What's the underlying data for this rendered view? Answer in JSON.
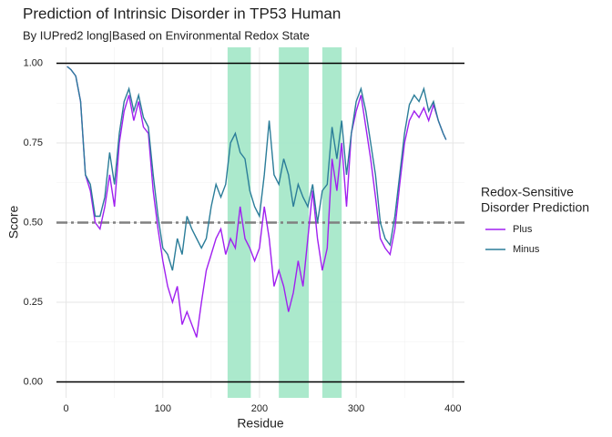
{
  "chart_data": {
    "type": "line",
    "title": "Prediction of Intrinsic Disorder in TP53 Human",
    "subtitle": "By IUPred2 long|Based on Environmental Redox State",
    "x_label": "Residue",
    "y_label": "Score",
    "legend_title": [
      "Redox-Sensitive",
      "Disorder Prediction"
    ],
    "legend_position": "right",
    "x": [
      1,
      5,
      10,
      15,
      20,
      25,
      30,
      35,
      40,
      45,
      50,
      55,
      60,
      65,
      70,
      75,
      80,
      85,
      90,
      95,
      100,
      105,
      110,
      115,
      120,
      125,
      130,
      135,
      140,
      145,
      150,
      155,
      160,
      165,
      170,
      175,
      180,
      185,
      190,
      195,
      200,
      205,
      210,
      215,
      220,
      225,
      230,
      235,
      240,
      245,
      250,
      255,
      260,
      265,
      270,
      275,
      280,
      285,
      290,
      295,
      300,
      305,
      310,
      315,
      320,
      325,
      330,
      335,
      340,
      345,
      350,
      355,
      360,
      365,
      370,
      375,
      380,
      385,
      390,
      393
    ],
    "series": [
      {
        "name": "Plus",
        "color": "#a020f0",
        "values": [
          0.99,
          0.98,
          0.96,
          0.88,
          0.65,
          0.6,
          0.5,
          0.48,
          0.55,
          0.65,
          0.55,
          0.75,
          0.85,
          0.9,
          0.82,
          0.88,
          0.8,
          0.78,
          0.6,
          0.48,
          0.38,
          0.3,
          0.25,
          0.3,
          0.18,
          0.22,
          0.18,
          0.14,
          0.25,
          0.35,
          0.4,
          0.45,
          0.48,
          0.4,
          0.45,
          0.42,
          0.55,
          0.45,
          0.42,
          0.38,
          0.42,
          0.55,
          0.45,
          0.3,
          0.35,
          0.3,
          0.22,
          0.28,
          0.38,
          0.3,
          0.45,
          0.6,
          0.45,
          0.35,
          0.42,
          0.7,
          0.6,
          0.75,
          0.55,
          0.78,
          0.85,
          0.9,
          0.8,
          0.7,
          0.58,
          0.45,
          0.42,
          0.4,
          0.48,
          0.62,
          0.75,
          0.82,
          0.85,
          0.83,
          0.86,
          0.82,
          0.87,
          0.82,
          0.78,
          0.76
        ]
      },
      {
        "name": "Minus",
        "color": "#2b7d99",
        "values": [
          0.99,
          0.98,
          0.96,
          0.88,
          0.65,
          0.62,
          0.52,
          0.52,
          0.58,
          0.72,
          0.62,
          0.78,
          0.88,
          0.92,
          0.85,
          0.9,
          0.83,
          0.8,
          0.65,
          0.52,
          0.42,
          0.4,
          0.35,
          0.45,
          0.4,
          0.52,
          0.48,
          0.45,
          0.42,
          0.45,
          0.55,
          0.62,
          0.58,
          0.62,
          0.75,
          0.78,
          0.72,
          0.7,
          0.6,
          0.55,
          0.52,
          0.65,
          0.82,
          0.65,
          0.62,
          0.7,
          0.65,
          0.55,
          0.62,
          0.58,
          0.55,
          0.62,
          0.5,
          0.6,
          0.62,
          0.8,
          0.7,
          0.82,
          0.65,
          0.78,
          0.88,
          0.92,
          0.85,
          0.75,
          0.65,
          0.5,
          0.45,
          0.43,
          0.52,
          0.65,
          0.78,
          0.87,
          0.9,
          0.88,
          0.92,
          0.85,
          0.88,
          0.82,
          0.78,
          0.76
        ]
      }
    ],
    "highlight_regions": [
      [
        167,
        191
      ],
      [
        220,
        251
      ],
      [
        265,
        285
      ]
    ],
    "highlight_color": "#a6e8c9",
    "reference_line": 0.5,
    "xlim": [
      -10,
      412
    ],
    "ylim": [
      -0.05,
      1.05
    ],
    "xticks": [
      0,
      100,
      200,
      300,
      400
    ],
    "yticks": [
      {
        "value": 0,
        "label": "0.00"
      },
      {
        "value": 0.25,
        "label": "0.25"
      },
      {
        "value": 0.5,
        "label": "0.50"
      },
      {
        "value": 0.75,
        "label": "0.75"
      },
      {
        "value": 1,
        "label": "1.00"
      }
    ],
    "minor_xticks": [
      50,
      150,
      250,
      350
    ],
    "minor_yticks": [
      0.125,
      0.375,
      0.625,
      0.875
    ],
    "grid": true
  }
}
